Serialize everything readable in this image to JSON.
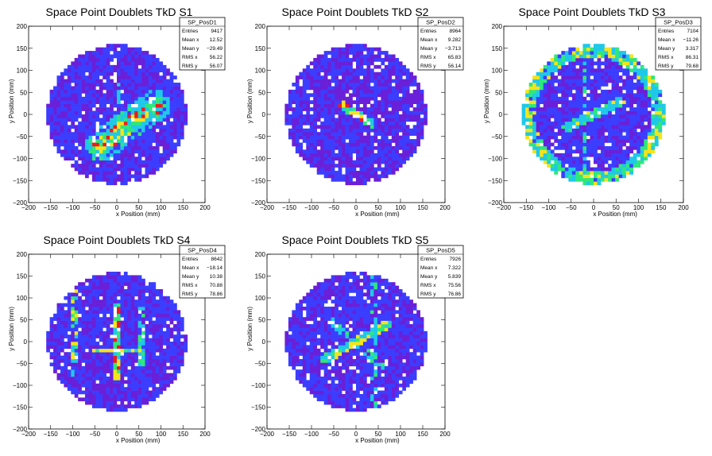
{
  "chart_data": [
    {
      "type": "heatmap",
      "title": "Space Point Doublets TkD S1",
      "xlabel": "x Position (mm)",
      "ylabel": "y Position (mm)",
      "xlim": [
        -200,
        200
      ],
      "ylim": [
        -200,
        200
      ],
      "xticks": [
        "−200",
        "−150",
        "−100",
        "−50",
        "0",
        "50",
        "100",
        "150",
        "200"
      ],
      "yticks": [
        "−200",
        "−150",
        "−100",
        "−50",
        "0",
        "50",
        "100",
        "150",
        "200"
      ],
      "stats": {
        "name": "SP_PosD1",
        "rows": [
          [
            "Entries",
            "9417"
          ],
          [
            "Mean x",
            "12.52"
          ],
          [
            "Mean y",
            "−29.49"
          ],
          [
            "RMS x",
            "56.22"
          ],
          [
            "RMS y",
            "56.07"
          ]
        ]
      },
      "pattern": "diagonal-band",
      "band": {
        "from": [
          -35,
          -70
        ],
        "to": [
          85,
          20
        ],
        "width": 18
      }
    },
    {
      "type": "heatmap",
      "title": "Space Point Doublets TkD S2",
      "xlabel": "x Position (mm)",
      "ylabel": "y Position (mm)",
      "xlim": [
        -200,
        200
      ],
      "ylim": [
        -200,
        200
      ],
      "xticks": [
        "−200",
        "−150",
        "−100",
        "−50",
        "0",
        "50",
        "100",
        "150",
        "200"
      ],
      "yticks": [
        "−200",
        "−150",
        "−100",
        "−50",
        "0",
        "50",
        "100",
        "150",
        "200"
      ],
      "stats": {
        "name": "SP_PosD2",
        "rows": [
          [
            "Entries",
            "8964"
          ],
          [
            "Mean x",
            "9.282"
          ],
          [
            "Mean y",
            "−3.713"
          ],
          [
            "RMS x",
            "65.83"
          ],
          [
            "RMS y",
            "56.14"
          ]
        ]
      },
      "pattern": "central-blob",
      "band": {
        "from": [
          -30,
          20
        ],
        "to": [
          35,
          -20
        ],
        "width": 9
      }
    },
    {
      "type": "heatmap",
      "title": "Space Point Doublets TkD S3",
      "xlabel": "x Position (mm)",
      "ylabel": "y Position (mm)",
      "xlim": [
        -200,
        200
      ],
      "ylim": [
        -200,
        200
      ],
      "xticks": [
        "−200",
        "−150",
        "−100",
        "−50",
        "0",
        "50",
        "100",
        "150",
        "200"
      ],
      "yticks": [
        "−200",
        "−150",
        "−100",
        "−50",
        "0",
        "50",
        "100",
        "150",
        "200"
      ],
      "stats": {
        "name": "SP_PosD3",
        "rows": [
          [
            "Entries",
            "7104"
          ],
          [
            "Mean x",
            "−11.26"
          ],
          [
            "Mean y",
            "3.317"
          ],
          [
            "RMS x",
            "86.31"
          ],
          [
            "RMS y",
            "79.68"
          ]
        ]
      },
      "pattern": "ring",
      "band": {
        "from": [
          -60,
          -30
        ],
        "to": [
          60,
          30
        ],
        "width": 10
      }
    },
    {
      "type": "heatmap",
      "title": "Space Point Doublets TkD S4",
      "xlabel": "x Position (mm)",
      "ylabel": "y Position (mm)",
      "xlim": [
        -200,
        200
      ],
      "ylim": [
        -200,
        200
      ],
      "xticks": [
        "−200",
        "−150",
        "−100",
        "−50",
        "0",
        "50",
        "100",
        "150",
        "200"
      ],
      "yticks": [
        "−200",
        "−150",
        "−100",
        "−50",
        "0",
        "50",
        "100",
        "150",
        "200"
      ],
      "stats": {
        "name": "SP_PosD4",
        "rows": [
          [
            "Entries",
            "8642"
          ],
          [
            "Mean x",
            "−18.14"
          ],
          [
            "Mean y",
            "10.38"
          ],
          [
            "RMS x",
            "70.88"
          ],
          [
            "RMS y",
            "78.86"
          ]
        ]
      },
      "pattern": "vertical-bands",
      "band": {
        "from": [
          0,
          -60
        ],
        "to": [
          0,
          60
        ],
        "width": 10
      }
    },
    {
      "type": "heatmap",
      "title": "Space Point Doublets TkD S5",
      "xlabel": "x Position (mm)",
      "ylabel": "y Position (mm)",
      "xlim": [
        -200,
        200
      ],
      "ylim": [
        -200,
        200
      ],
      "xticks": [
        "−200",
        "−150",
        "−100",
        "−50",
        "0",
        "50",
        "100",
        "150",
        "200"
      ],
      "yticks": [
        "−200",
        "−150",
        "−100",
        "−50",
        "0",
        "50",
        "100",
        "150",
        "200"
      ],
      "stats": {
        "name": "SP_PosD5",
        "rows": [
          [
            "Entries",
            "7926"
          ],
          [
            "Mean x",
            "7.322"
          ],
          [
            "Mean y",
            "5.839"
          ],
          [
            "RMS x",
            "75.56"
          ],
          [
            "RMS y",
            "76.86"
          ]
        ]
      },
      "pattern": "cross",
      "band": {
        "from": [
          -70,
          -40
        ],
        "to": [
          70,
          40
        ],
        "width": 10
      }
    }
  ],
  "colors": {
    "empty": "#ffffff",
    "low": "#6a1fd8",
    "mid_low": "#3b3dff",
    "mid": "#1fc8e8",
    "mid_high": "#2ee87a",
    "high": "#f4e41a",
    "max": "#ef1b1b"
  }
}
